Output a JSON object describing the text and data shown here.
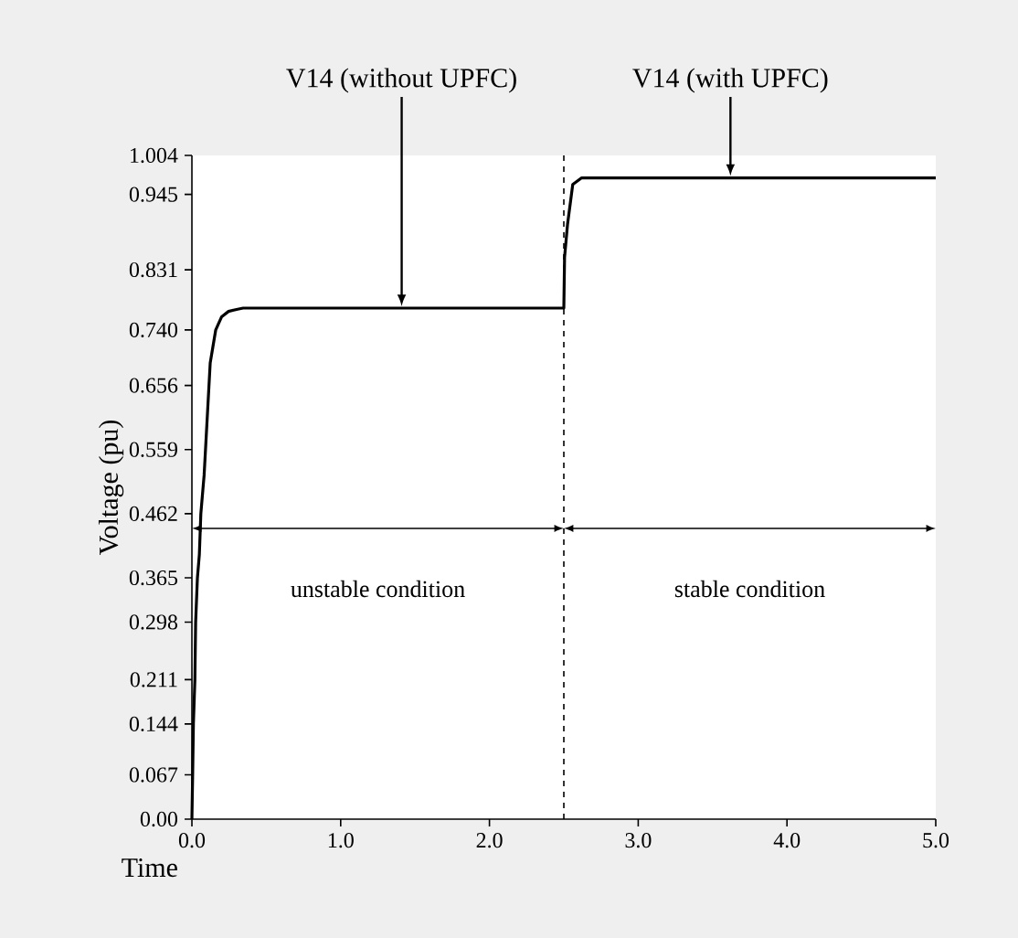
{
  "chart_data": {
    "type": "line",
    "xlabel": "Time",
    "ylabel": "Voltage (pu)",
    "xlim": [
      0,
      5
    ],
    "ylim": [
      0,
      1.004
    ],
    "xticks": [
      {
        "value": 0,
        "label": "0.0"
      },
      {
        "value": 1,
        "label": "1.0"
      },
      {
        "value": 2,
        "label": "2.0"
      },
      {
        "value": 3,
        "label": "3.0"
      },
      {
        "value": 4,
        "label": "4.0"
      },
      {
        "value": 5,
        "label": "5.0"
      }
    ],
    "yticks": [
      {
        "value": 0,
        "label": "0.00"
      },
      {
        "value": 0.067,
        "label": "0.067"
      },
      {
        "value": 0.144,
        "label": "0.144"
      },
      {
        "value": 0.211,
        "label": "0.211"
      },
      {
        "value": 0.298,
        "label": "0.298"
      },
      {
        "value": 0.365,
        "label": "0.365"
      },
      {
        "value": 0.462,
        "label": "0.462"
      },
      {
        "value": 0.559,
        "label": "0.559"
      },
      {
        "value": 0.656,
        "label": "0.656"
      },
      {
        "value": 0.74,
        "label": "0.740"
      },
      {
        "value": 0.831,
        "label": "0.831"
      },
      {
        "value": 0.945,
        "label": "0.945"
      },
      {
        "value": 1.004,
        "label": "1.004"
      }
    ],
    "series": [
      {
        "color": "#000000",
        "x": [
          0,
          0.005,
          0.01,
          0.02,
          0.025,
          0.037,
          0.05,
          0.06,
          0.082,
          0.123,
          0.16,
          0.2,
          0.246,
          0.3,
          0.344,
          1.0,
          2.0,
          2.5,
          2.505,
          2.525,
          2.56,
          2.62,
          3.0,
          4.0,
          5.0
        ],
        "values": [
          0,
          0.067,
          0.144,
          0.211,
          0.298,
          0.365,
          0.4,
          0.462,
          0.52,
          0.69,
          0.74,
          0.76,
          0.768,
          0.771,
          0.773,
          0.773,
          0.773,
          0.773,
          0.85,
          0.9,
          0.96,
          0.97,
          0.97,
          0.97,
          0.97
        ]
      }
    ],
    "marker": "none",
    "line_style": "solid",
    "ref_lines": [
      {
        "axis": "x",
        "value": 2.5,
        "line_style": "dashed",
        "color": "#000000"
      }
    ],
    "annotations": [
      {
        "text": "V14 (without UPFC)",
        "x": 1.41,
        "y": 0.773
      },
      {
        "text": "V14 (with UPFC)",
        "x": 3.62,
        "y": 0.97
      },
      "unstable condition",
      "stable condition"
    ]
  }
}
